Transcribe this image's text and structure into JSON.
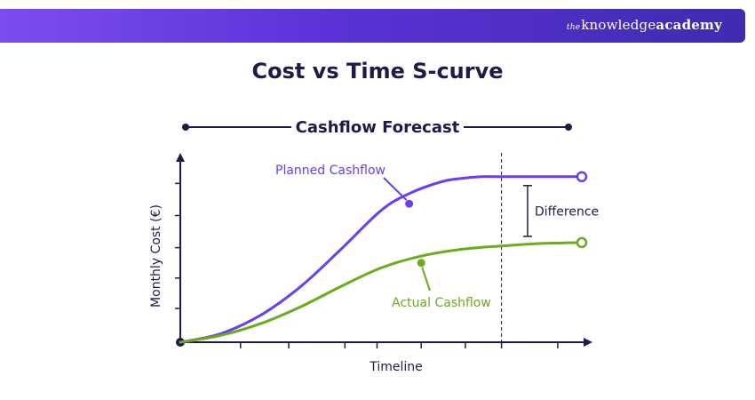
{
  "header": {
    "brand_prefix": "the",
    "brand_main": "knowledge",
    "brand_bold": "academy"
  },
  "colors": {
    "banner_start": "#7b4df0",
    "banner_end": "#3f2bb0",
    "navy": "#1e1b4b",
    "planned": "#6b3df0",
    "actual": "#6aac1c"
  },
  "chart_data": {
    "type": "line",
    "title": "Cost vs Time S-curve",
    "subtitle": "Cashflow Forecast",
    "xlabel": "Timeline",
    "ylabel": "Monthly Cost (€)",
    "xlim": [
      0,
      10
    ],
    "ylim": [
      0,
      1
    ],
    "grid": false,
    "series": [
      {
        "name": "Planned Cashflow",
        "x": [
          0,
          1,
          2,
          3,
          4,
          5,
          5.7,
          6.5,
          7,
          7.5,
          8,
          9,
          10
        ],
        "y": [
          0,
          0.05,
          0.16,
          0.33,
          0.55,
          0.78,
          0.88,
          0.95,
          0.97,
          0.98,
          0.98,
          0.98,
          0.98
        ],
        "marker_x": 5.7,
        "marker_y": 0.82
      },
      {
        "name": "Actual Cashflow",
        "x": [
          0,
          1,
          2,
          3,
          4,
          5,
          6,
          7,
          8,
          9,
          10
        ],
        "y": [
          0,
          0.04,
          0.11,
          0.21,
          0.33,
          0.44,
          0.51,
          0.55,
          0.57,
          0.585,
          0.59
        ],
        "marker_x": 6.0,
        "marker_y": 0.47
      }
    ],
    "annotations": {
      "difference_label": "Difference",
      "difference_x": 8.65,
      "milestone_x": 8.0
    }
  }
}
